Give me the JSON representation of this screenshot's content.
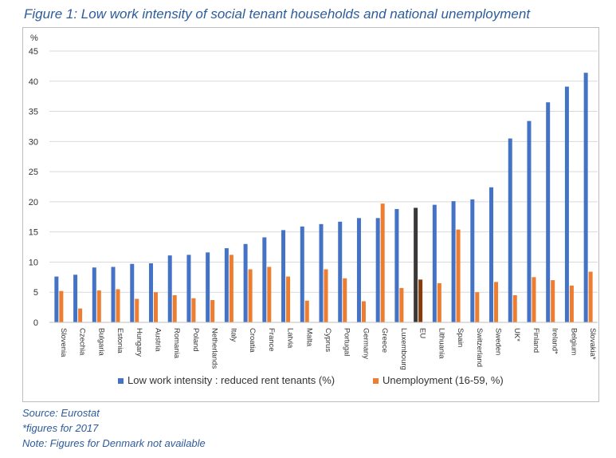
{
  "figure": {
    "title": "Figure 1: Low work intensity of social tenant households and national unemployment",
    "notes": [
      "Source: Eurostat",
      "*figures for 2017",
      "Note: Figures for Denmark not available"
    ]
  },
  "chart_data": {
    "type": "bar",
    "ylabel": "%",
    "ylim": [
      0,
      45
    ],
    "yticks": [
      0,
      5,
      10,
      15,
      20,
      25,
      30,
      35,
      40,
      45
    ],
    "grid": true,
    "legend_position": "bottom",
    "categories": [
      "Slovenia",
      "Czechia",
      "Bulgaria",
      "Estonia",
      "Hungary",
      "Austria",
      "Romania",
      "Poland",
      "Netherlands",
      "Italy",
      "Croatia",
      "France",
      "Latvia",
      "Malta",
      "Cyprus",
      "Portugal",
      "Germany",
      "Greece",
      "Luxembourg",
      "EU",
      "Lithuania",
      "Spain",
      "Switzerland",
      "Sweden",
      "UK*",
      "Finland",
      "Ireland*",
      "Belgium",
      "Slovakia*"
    ],
    "series": [
      {
        "name": "Low work intensity : reduced rent tenants (%)",
        "color": "#4472c4",
        "values": [
          7.6,
          7.9,
          9.1,
          9.2,
          9.7,
          9.8,
          11.1,
          11.2,
          11.6,
          12.3,
          13.0,
          14.1,
          15.3,
          15.9,
          16.3,
          16.7,
          17.3,
          17.3,
          18.8,
          19.0,
          19.5,
          20.1,
          20.4,
          22.4,
          30.5,
          33.4,
          36.5,
          39.1,
          41.4
        ]
      },
      {
        "name": "Unemployment (16-59, %)",
        "color": "#ed7d31",
        "values": [
          5.2,
          2.3,
          5.3,
          5.5,
          3.9,
          5.0,
          4.5,
          4.0,
          3.7,
          11.2,
          8.8,
          9.2,
          7.6,
          3.6,
          8.8,
          7.3,
          3.5,
          19.7,
          5.7,
          7.1,
          6.5,
          15.4,
          5.0,
          6.7,
          4.5,
          7.5,
          7.0,
          6.1,
          8.4
        ]
      }
    ],
    "highlight": {
      "category": "EU",
      "colors": [
        "#3b3838",
        "#843c0c"
      ]
    }
  }
}
